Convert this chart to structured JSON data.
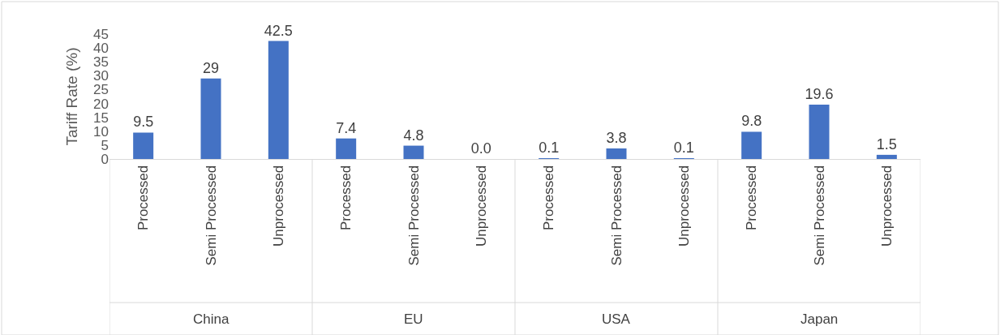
{
  "chart_data": {
    "type": "bar",
    "ylabel": "Tariff Rate (%)",
    "categories": [
      "Processed",
      "Semi Processed",
      "Unprocessed",
      "Processed",
      "Semi Processed",
      "Unprocessed",
      "Processed",
      "Semi Processed",
      "Unprocessed",
      "Processed",
      "Semi Processed",
      "Unprocessed"
    ],
    "values": [
      9.5,
      29,
      42.5,
      7.4,
      4.8,
      0,
      0.1,
      3.8,
      0.1,
      9.8,
      19.6,
      1.5
    ],
    "value_labels": [
      "9.5",
      "29",
      "42.5",
      "7.4",
      "4.8",
      "0.0",
      "0.1",
      "3.8",
      "0.1",
      "9.8",
      "19.6",
      "1.5"
    ],
    "color": "#4472c4",
    "ylim": [
      0,
      45
    ],
    "yticks": [
      0,
      5,
      10,
      15,
      20,
      25,
      30,
      35,
      40,
      45
    ],
    "annotations": [
      "China",
      "EU",
      "USA",
      "Japan"
    ]
  }
}
